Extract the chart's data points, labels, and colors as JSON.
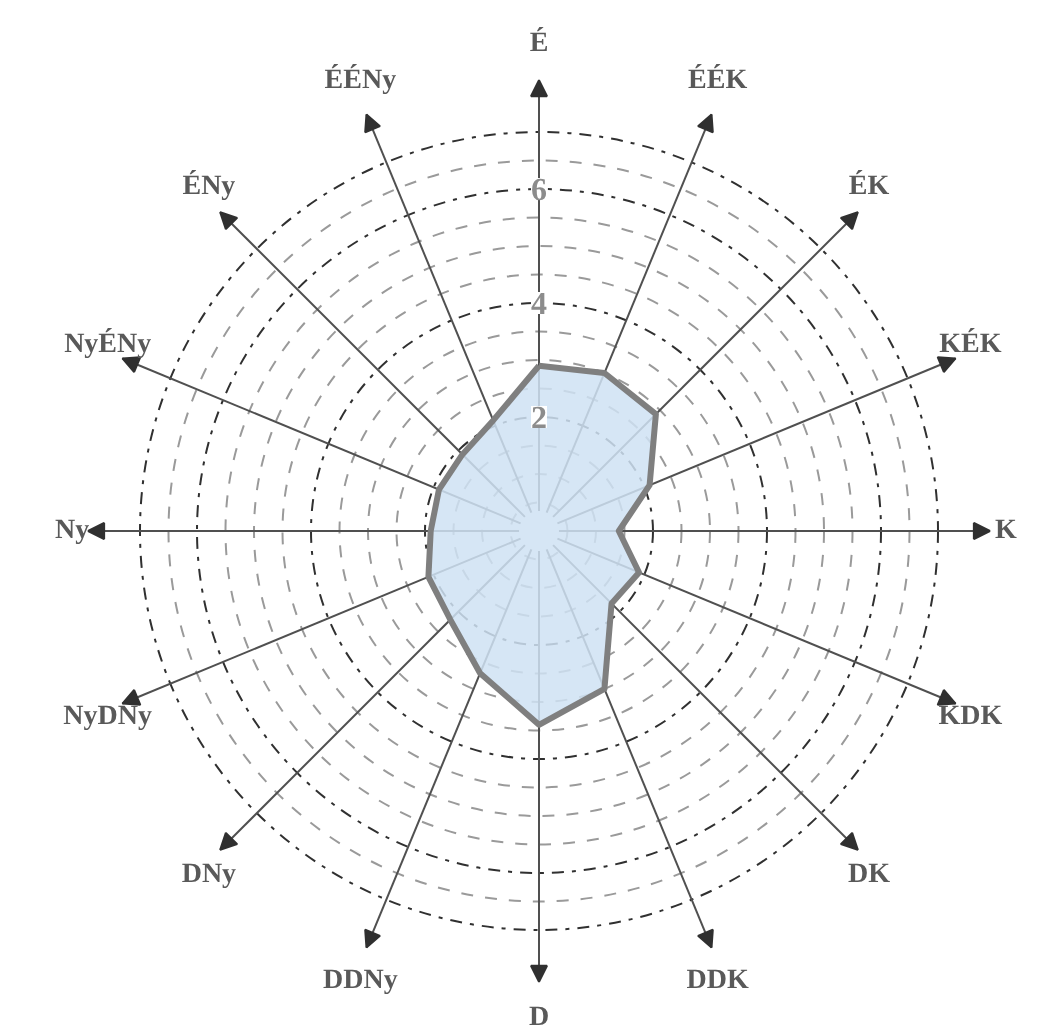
{
  "chart_data": {
    "type": "radar",
    "categories": [
      "É",
      "ÉÉK",
      "ÉK",
      "KÉK",
      "K",
      "KDK",
      "DK",
      "DDK",
      "D",
      "DDNy",
      "DNy",
      "NyDNy",
      "Ny",
      "NyÉNy",
      "ÉNy",
      "ÉÉNy"
    ],
    "series": [
      {
        "color": "#7f7f7f",
        "values": [
          2.9,
          3.0,
          2.9,
          2.1,
          1.4,
          1.9,
          1.8,
          3.0,
          3.4,
          2.7,
          2.2,
          2.1,
          1.9,
          1.9,
          1.9,
          2.1
        ]
      }
    ],
    "ylim": [
      0,
      7
    ],
    "yticks": [
      2,
      4,
      6
    ],
    "grid": true
  }
}
